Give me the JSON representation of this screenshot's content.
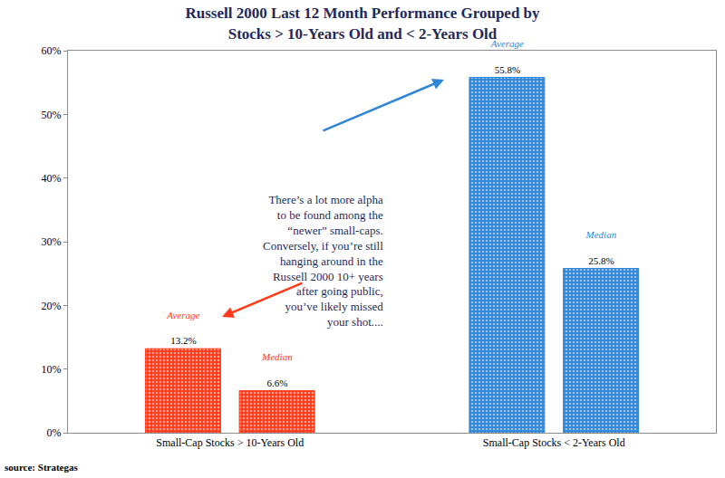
{
  "chart_data": {
    "type": "bar",
    "title": "Russell 2000 Last 12 Month Performance Grouped by\nStocks > 10-Years Old and < 2-Years Old",
    "categories": [
      "Small-Cap Stocks > 10-Years Old",
      "Small-Cap Stocks < 2-Years Old"
    ],
    "series": [
      {
        "name": "Average",
        "colors": [
          "#ff3a1a",
          "#2f86d6"
        ],
        "values": [
          13.2,
          55.8
        ],
        "value_labels": [
          "13.2%",
          "55.8%"
        ]
      },
      {
        "name": "Median",
        "colors": [
          "#ff3a1a",
          "#2f86d6"
        ],
        "values": [
          6.6,
          25.8
        ],
        "value_labels": [
          "6.6%",
          "25.8%"
        ]
      }
    ],
    "ylim": [
      0,
      60
    ],
    "yticks": [
      {
        "value": 0,
        "label": "0%"
      },
      {
        "value": 10,
        "label": "10%"
      },
      {
        "value": 20,
        "label": "20%"
      },
      {
        "value": 30,
        "label": "30%"
      },
      {
        "value": 40,
        "label": "40%"
      },
      {
        "value": 50,
        "label": "50%"
      },
      {
        "value": 60,
        "label": "60%"
      }
    ],
    "grid": false,
    "data_labels": true,
    "annotations": [
      {
        "text": "There’s a lot more alpha\nto be found among the\n“newer” small-caps.\nConversely, if you’re still\nhanging around in the\nRussell 2000 10+ years\nafter going public,\nyou’ve likely missed\nyour shot...."
      }
    ],
    "source": "source: Strategas"
  }
}
